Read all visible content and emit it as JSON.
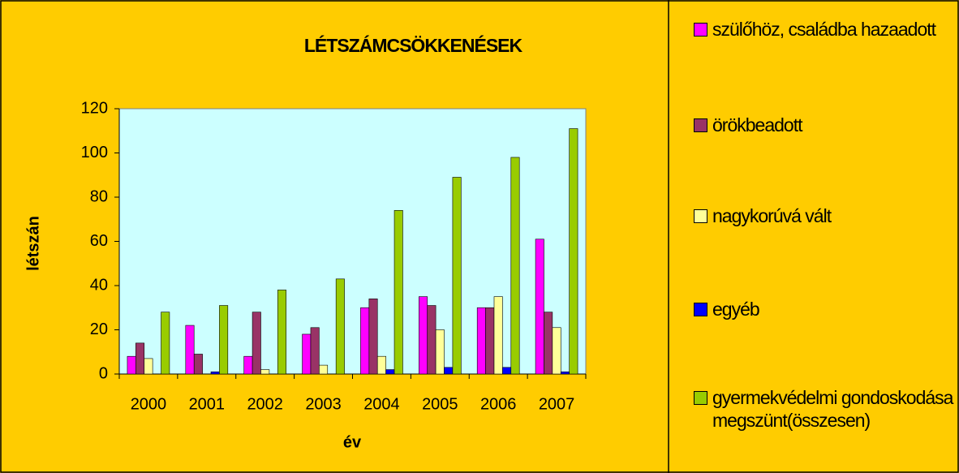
{
  "chart_data": {
    "type": "bar",
    "title": "LÉTSZÁMCSÖKKENÉSEK",
    "x_label": "év",
    "y_label": "létszán",
    "categories": [
      "2000",
      "2001",
      "2002",
      "2003",
      "2004",
      "2005",
      "2006",
      "2007"
    ],
    "series": [
      {
        "name": "szülőhöz, családba hazaadott",
        "color": "#FF00FF",
        "values": [
          8,
          22,
          8,
          18,
          30,
          35,
          30,
          61
        ]
      },
      {
        "name": "örökbeadott",
        "color": "#993366",
        "values": [
          14,
          9,
          28,
          21,
          34,
          31,
          30,
          28
        ]
      },
      {
        "name": "nagykorúvá vált",
        "color": "#FFFF99",
        "values": [
          7,
          0,
          2,
          4,
          8,
          20,
          35,
          21
        ]
      },
      {
        "name": "egyéb",
        "color": "#0000FF",
        "values": [
          0,
          1,
          0,
          0,
          2,
          3,
          3,
          1
        ]
      },
      {
        "name": "gyermekvédelmi gondoskodása megszünt(összesen)",
        "color": "#99CC00",
        "values": [
          28,
          31,
          38,
          43,
          74,
          89,
          98,
          111
        ]
      }
    ],
    "ylim": [
      0,
      120
    ],
    "yticks": [
      0,
      20,
      40,
      60,
      80,
      100,
      120
    ],
    "grid": false
  }
}
